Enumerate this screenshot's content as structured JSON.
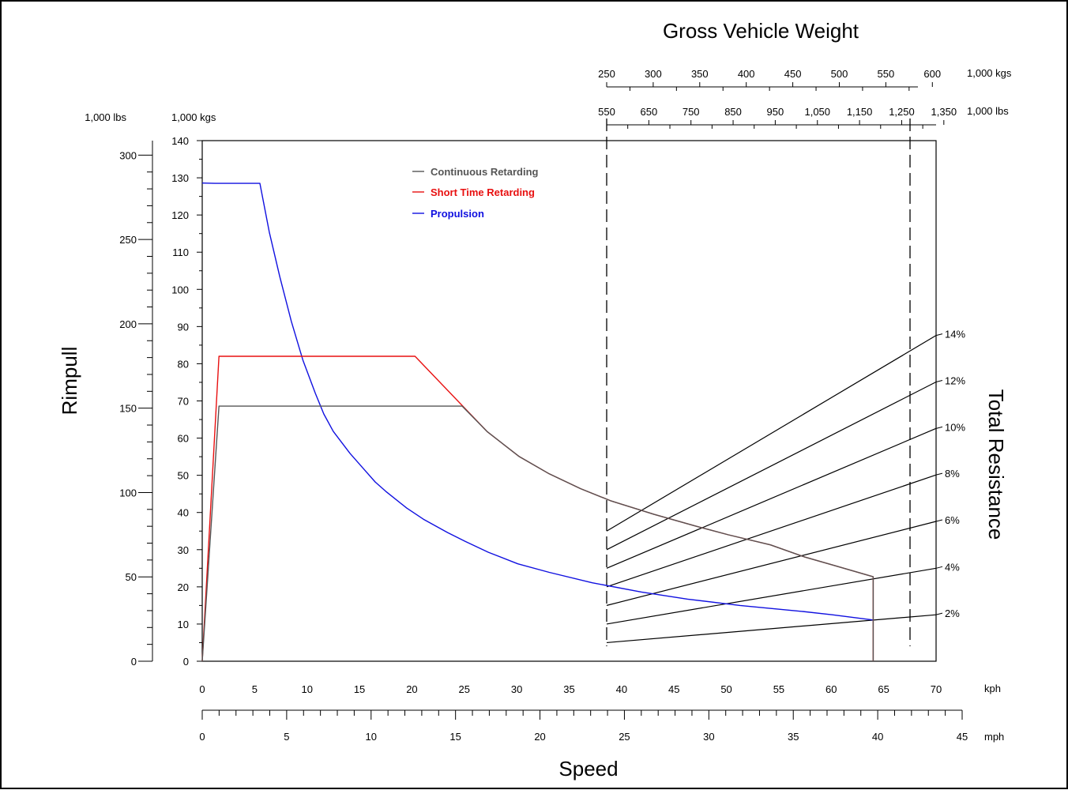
{
  "chart_data": {
    "type": "line",
    "title_gvw": "Gross Vehicle Weight",
    "ylabel_left": "Rimpull",
    "ylabel_right": "Total Resistance",
    "xlabel": "Speed",
    "unit_lbs": "1,000 lbs",
    "unit_kgs": "1,000 kgs",
    "unit_kph": "kph",
    "unit_mph": "mph",
    "y_kgs": {
      "range": [
        0,
        140
      ],
      "ticks": [
        "0",
        "10",
        "20",
        "30",
        "40",
        "50",
        "60",
        "70",
        "80",
        "90",
        "100",
        "110",
        "120",
        "130",
        "140"
      ]
    },
    "y_lbs": {
      "range": [
        0,
        308.6
      ],
      "ticks": [
        "0",
        "50",
        "100",
        "150",
        "200",
        "250",
        "300"
      ]
    },
    "x_kph": {
      "range": [
        0,
        70
      ],
      "ticks": [
        "0",
        "5",
        "10",
        "15",
        "20",
        "25",
        "30",
        "35",
        "40",
        "45",
        "50",
        "55",
        "60",
        "65",
        "70"
      ]
    },
    "x_mph": {
      "range": [
        0,
        45
      ],
      "ticks": [
        "0",
        "5",
        "10",
        "15",
        "20",
        "25",
        "30",
        "35",
        "40",
        "45"
      ]
    },
    "gvw_kgs": {
      "range": [
        250,
        604
      ],
      "ticks": [
        "250",
        "300",
        "350",
        "400",
        "450",
        "500",
        "550",
        "600"
      ]
    },
    "gvw_lbs": {
      "range": [
        550,
        1331.6
      ],
      "ticks": [
        "550",
        "650",
        "750",
        "850",
        "950",
        "1,050",
        "1,150",
        "1,250",
        "1,350"
      ]
    },
    "gvw_limits_kgs": [
      250,
      576
    ],
    "legend": [
      {
        "label": "Continuous Retarding",
        "color": "#555555"
      },
      {
        "label": "Short Time Retarding",
        "color": "#e81010"
      },
      {
        "label": "Propulsion",
        "color": "#1010e0"
      }
    ],
    "series": [
      {
        "name": "Propulsion",
        "color": "#1010e0",
        "x": [
          0,
          1.2,
          5.5,
          6.4,
          7.4,
          8.5,
          9.6,
          10.8,
          11.6,
          12.5,
          14.1,
          15.5,
          16.5,
          17.5,
          19.5,
          21.1,
          23.4,
          25.1,
          27.3,
          30.1,
          33.1,
          37.2,
          41.9,
          46.3,
          51.3,
          57.2,
          60.1,
          64.0
        ],
        "y": [
          128.6,
          128.5,
          128.5,
          115.4,
          103.4,
          91.4,
          81.0,
          72.0,
          66.5,
          61.8,
          55.9,
          51.4,
          48.2,
          45.7,
          41.2,
          38.2,
          34.6,
          32.2,
          29.3,
          26.2,
          23.9,
          21.1,
          18.6,
          16.7,
          15.0,
          13.4,
          12.5,
          11.1
        ]
      },
      {
        "name": "Short Time Retarding",
        "color": "#e81010",
        "x": [
          0,
          1.6,
          20.3,
          27.2,
          30.2,
          33.1,
          36.1,
          39.0,
          43.1,
          47.0,
          50.2,
          54.2,
          57.5,
          60.1,
          64.0,
          64.0
        ],
        "y": [
          0,
          82.0,
          82.0,
          61.7,
          55.1,
          50.4,
          46.4,
          43.1,
          39.5,
          36.4,
          34.0,
          31.3,
          28.0,
          25.9,
          22.7,
          0
        ]
      },
      {
        "name": "Continuous Retarding",
        "color": "#555555",
        "x": [
          0,
          1.6,
          24.8,
          27.2,
          30.2,
          33.1,
          36.1,
          39.0,
          43.1,
          47.0,
          50.2,
          54.2,
          57.5,
          60.1,
          64.0,
          64.0
        ],
        "y": [
          0,
          68.6,
          68.6,
          61.7,
          55.1,
          50.4,
          46.4,
          43.1,
          39.5,
          36.4,
          34.0,
          31.3,
          28.0,
          25.9,
          22.7,
          0
        ]
      }
    ],
    "resistance_lines": [
      {
        "label": "2%",
        "y_at_250": 5.0,
        "y_at_604": 12.5
      },
      {
        "label": "4%",
        "y_at_250": 10.0,
        "y_at_604": 25.0
      },
      {
        "label": "6%",
        "y_at_250": 15.0,
        "y_at_604": 37.6
      },
      {
        "label": "8%",
        "y_at_250": 20.0,
        "y_at_604": 50.1
      },
      {
        "label": "10%",
        "y_at_250": 25.0,
        "y_at_604": 62.6
      },
      {
        "label": "12%",
        "y_at_250": 30.0,
        "y_at_604": 75.1
      },
      {
        "label": "14%",
        "y_at_250": 35.0,
        "y_at_604": 87.6
      }
    ]
  }
}
